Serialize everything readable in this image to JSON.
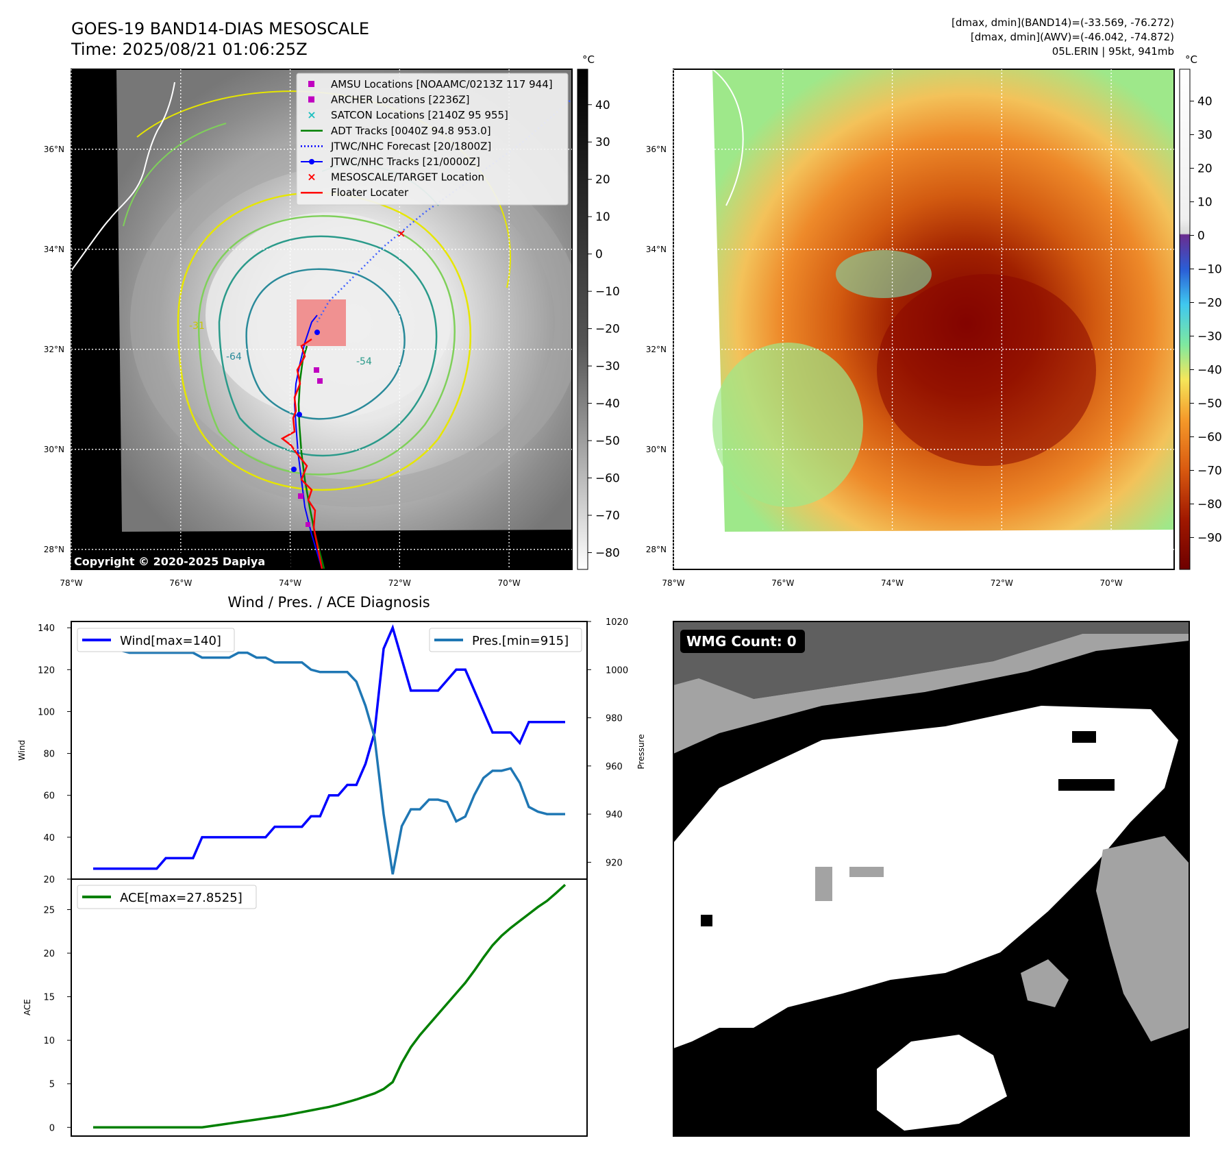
{
  "header": {
    "title_line1": "GOES-19 BAND14-DIAS MESOSCALE",
    "title_line2": "Time: 2025/08/21 01:06:25Z",
    "info_line1": "[dmax, dmin](BAND14)=(-33.569, -76.272)",
    "info_line2": "[dmax, dmin](AWV)=(-46.042, -74.872)",
    "info_line3": "05L.ERIN | 95kt, 941mb"
  },
  "map": {
    "lat_labels": [
      "36°N",
      "34°N",
      "32°N",
      "30°N",
      "28°N"
    ],
    "lat_values": [
      36,
      34,
      32,
      30,
      28
    ],
    "lon_labels": [
      "78°W",
      "76°W",
      "74°W",
      "72°W",
      "70°W"
    ],
    "lon_values": [
      -78,
      -76,
      -74,
      -72,
      -70
    ],
    "copyright": "Copyright © 2020-2025 Dapiya",
    "contour_labels": [
      "-31",
      "-54",
      "-64"
    ],
    "colorbar_unit": "°C",
    "gray_colorbar_ticks": [
      "40",
      "30",
      "20",
      "10",
      "0",
      "−10",
      "−20",
      "−30",
      "−40",
      "−50",
      "−60",
      "−70",
      "−80"
    ],
    "gray_colorbar_values": [
      40,
      30,
      20,
      10,
      0,
      -10,
      -20,
      -30,
      -40,
      -50,
      -60,
      -70,
      -80
    ],
    "color_colorbar_ticks": [
      "40",
      "30",
      "20",
      "10",
      "0",
      "−10",
      "−20",
      "−30",
      "−40",
      "−50",
      "−60",
      "−70",
      "−80",
      "−90"
    ],
    "color_colorbar_values": [
      40,
      30,
      20,
      10,
      0,
      -10,
      -20,
      -30,
      -40,
      -50,
      -60,
      -70,
      -80,
      -90
    ],
    "legend": [
      {
        "label": "AMSU Locations [NOAAMC/0213Z 117 944]",
        "marker": "square",
        "color": "#c000c0"
      },
      {
        "label": "ARCHER Locations [2236Z]",
        "marker": "square",
        "color": "#c000c0"
      },
      {
        "label": "SATCON Locations [2140Z 95 955]",
        "marker": "x",
        "color": "#20c0c0"
      },
      {
        "label": "ADT Tracks [0040Z 94.8 953.0]",
        "marker": "line",
        "color": "#008000"
      },
      {
        "label": "JTWC/NHC Forecast [20/1800Z]",
        "marker": "dotted",
        "color": "#0000ff"
      },
      {
        "label": "JTWC/NHC Tracks [21/0000Z]",
        "marker": "line-dot",
        "color": "#0000ff"
      },
      {
        "label": "MESOSCALE/TARGET Location",
        "marker": "x",
        "color": "#ff0000"
      },
      {
        "label": "Floater Locater",
        "marker": "line",
        "color": "#ff0000"
      }
    ]
  },
  "chart_data": [
    {
      "type": "line",
      "title": "Wind / Pres. / ACE Diagnosis",
      "ylabel": "Wind",
      "ylabel_right": "Pressure",
      "ylim": [
        20,
        143
      ],
      "ylim_right": [
        913,
        1020
      ],
      "yticks": [
        "140",
        "120",
        "100",
        "80",
        "60",
        "40",
        "20"
      ],
      "yticks_right": [
        "1020",
        "1000",
        "980",
        "960",
        "940",
        "920"
      ],
      "x": [
        0,
        1,
        2,
        3,
        4,
        5,
        6,
        7,
        8,
        9,
        10,
        11,
        12,
        13,
        14,
        15,
        16,
        17,
        18,
        19,
        20,
        21,
        22,
        23,
        24,
        25,
        26,
        27,
        28,
        29,
        30,
        31,
        32,
        33,
        34,
        35,
        36,
        37,
        38,
        39,
        40,
        41,
        42,
        43,
        44,
        45,
        46,
        47,
        48,
        49,
        50,
        51,
        52
      ],
      "series": [
        {
          "name": "Wind[max=140]",
          "color": "#0000ff",
          "values": [
            25,
            25,
            25,
            25,
            25,
            25,
            25,
            25,
            30,
            30,
            30,
            30,
            40,
            40,
            40,
            40,
            40,
            40,
            40,
            40,
            45,
            45,
            45,
            45,
            50,
            50,
            60,
            60,
            65,
            65,
            75,
            90,
            130,
            140,
            125,
            110,
            110,
            110,
            110,
            115,
            120,
            120,
            110,
            100,
            90,
            90,
            90,
            85,
            95,
            95,
            95,
            95,
            95
          ]
        },
        {
          "name": "Pres.[min=915]",
          "color": "#1f77b4",
          "values": [
            1015,
            1015,
            1010,
            1008,
            1007,
            1007,
            1007,
            1007,
            1007,
            1007,
            1007,
            1007,
            1005,
            1005,
            1005,
            1005,
            1007,
            1007,
            1005,
            1005,
            1003,
            1003,
            1003,
            1003,
            1000,
            999,
            999,
            999,
            999,
            995,
            985,
            972,
            940,
            915,
            935,
            942,
            942,
            946,
            946,
            945,
            937,
            939,
            948,
            955,
            958,
            958,
            959,
            953,
            943,
            941,
            940,
            940,
            940
          ]
        }
      ]
    },
    {
      "type": "line",
      "ylabel": "ACE",
      "ylim": [
        -1,
        28.5
      ],
      "yticks": [
        "25",
        "20",
        "15",
        "10",
        "5",
        "0"
      ],
      "x": [
        0,
        1,
        2,
        3,
        4,
        5,
        6,
        7,
        8,
        9,
        10,
        11,
        12,
        13,
        14,
        15,
        16,
        17,
        18,
        19,
        20,
        21,
        22,
        23,
        24,
        25,
        26,
        27,
        28,
        29,
        30,
        31,
        32,
        33,
        34,
        35,
        36,
        37,
        38,
        39,
        40,
        41,
        42,
        43,
        44,
        45,
        46,
        47,
        48,
        49,
        50,
        51,
        52
      ],
      "series": [
        {
          "name": "ACE[max=27.8525]",
          "color": "#008000",
          "values": [
            0,
            0,
            0,
            0,
            0,
            0,
            0,
            0,
            0,
            0,
            0,
            0,
            0,
            0.15,
            0.3,
            0.45,
            0.6,
            0.75,
            0.9,
            1.05,
            1.2,
            1.35,
            1.55,
            1.75,
            1.95,
            2.15,
            2.35,
            2.6,
            2.9,
            3.2,
            3.55,
            3.9,
            4.4,
            5.2,
            7.4,
            9.2,
            10.6,
            11.8,
            13.0,
            14.2,
            15.4,
            16.6,
            18.0,
            19.5,
            20.9,
            22.0,
            22.9,
            23.7,
            24.5,
            25.3,
            26.0,
            26.9,
            27.85
          ]
        }
      ]
    }
  ],
  "wmg": {
    "badge": "WMG Count: 0"
  }
}
